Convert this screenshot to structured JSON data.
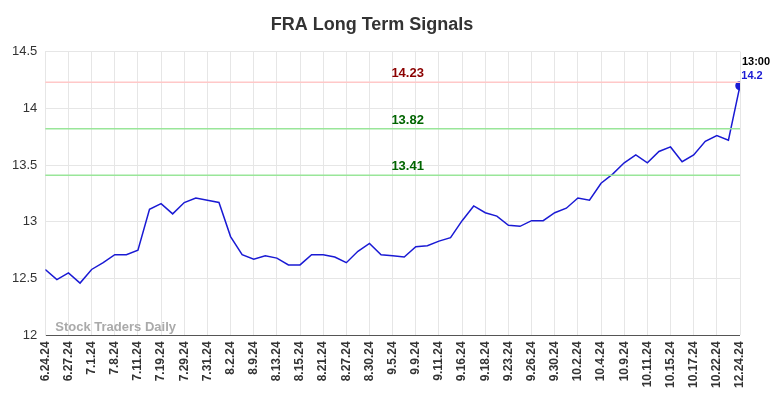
{
  "chart_data": {
    "type": "line",
    "title": "FRA Long Term Signals",
    "categories": [
      "6.24.24",
      null,
      "6.27.24",
      null,
      "7.1.24",
      null,
      "7.8.24",
      null,
      "7.11.24",
      null,
      "7.19.24",
      null,
      "7.29.24",
      null,
      "7.31.24",
      null,
      "8.2.24",
      null,
      "8.9.24",
      null,
      "8.13.24",
      null,
      "8.15.24",
      null,
      "8.21.24",
      null,
      "8.27.24",
      null,
      "8.30.24",
      null,
      "9.5.24",
      null,
      "9.9.24",
      null,
      "9.11.24",
      null,
      "9.16.24",
      null,
      "9.18.24",
      null,
      "9.23.24",
      null,
      "9.26.24",
      null,
      "9.30.24",
      null,
      "10.2.24",
      null,
      "10.4.24",
      null,
      "10.9.24",
      null,
      "10.11.24",
      null,
      "10.15.24",
      null,
      "10.17.24",
      null,
      "10.22.24",
      null,
      "12.24.24"
    ],
    "values": [
      12.58,
      12.49,
      12.55,
      12.46,
      12.58,
      12.64,
      12.71,
      12.71,
      12.75,
      13.11,
      13.16,
      13.07,
      13.17,
      13.21,
      13.19,
      13.17,
      12.87,
      12.71,
      12.67,
      12.7,
      12.68,
      12.62,
      12.62,
      12.71,
      12.71,
      12.69,
      12.64,
      12.74,
      12.81,
      12.71,
      12.7,
      12.69,
      12.78,
      12.79,
      12.83,
      12.86,
      13.01,
      13.14,
      13.08,
      13.05,
      12.97,
      12.96,
      13.01,
      13.01,
      13.08,
      13.12,
      13.21,
      13.19,
      13.34,
      13.42,
      13.52,
      13.59,
      13.52,
      13.62,
      13.66,
      13.53,
      13.59,
      13.71,
      13.76,
      13.72,
      14.2
    ],
    "value_labels": [
      null,
      null,
      null,
      null,
      null,
      null,
      null,
      null,
      null,
      null,
      null,
      null,
      null,
      null,
      null,
      null,
      null,
      null,
      null,
      null,
      null,
      null,
      null,
      null,
      null,
      null,
      null,
      null,
      null,
      null,
      null,
      null,
      null,
      null,
      null,
      null,
      null,
      null,
      null,
      null,
      null,
      null,
      null,
      null,
      null,
      null,
      null,
      null,
      null,
      null,
      null,
      null,
      null,
      null,
      null,
      null,
      null,
      null,
      null,
      null,
      "14.2"
    ],
    "color": "#1a1ad4",
    "ylim": [
      12,
      14.5
    ],
    "yticks": [
      12,
      12.5,
      13,
      13.5,
      14,
      14.5
    ],
    "grid": true,
    "reference_lines": [
      {
        "value": 14.23,
        "label": "14.23",
        "color": "#ffc8c8",
        "label_color": "#8b0000"
      },
      {
        "value": 13.82,
        "label": "13.82",
        "color": "#99e699",
        "label_color": "#006400"
      },
      {
        "value": 13.41,
        "label": "13.41",
        "color": "#99e699",
        "label_color": "#006400"
      }
    ],
    "annotations": [
      {
        "text": "13:00"
      }
    ],
    "watermark": "Stock Traders Daily"
  }
}
